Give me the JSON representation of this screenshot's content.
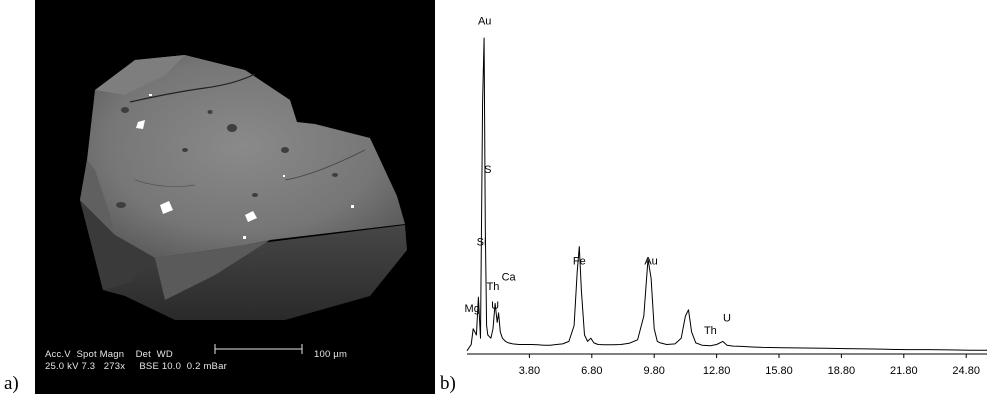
{
  "panels": {
    "a_label": "a)",
    "b_label": "b)"
  },
  "sem": {
    "row1": "Acc.V  Spot Magn    Det  WD",
    "row2": "25.0 kV 7.3   273x     BSE 10.0  0.2 mBar",
    "scale_label": "100 µm"
  },
  "chart_data": {
    "type": "line",
    "x_ticks": [
      "3.80",
      "6.80",
      "9.80",
      "12.80",
      "15.80",
      "18.80",
      "21.80",
      "24.80"
    ],
    "x_tick_values": [
      3.8,
      6.8,
      9.8,
      12.8,
      15.8,
      18.8,
      21.8,
      24.8
    ],
    "xlim": [
      0.8,
      25.8
    ],
    "ylim": [
      0,
      100
    ],
    "series": [
      {
        "x": [
          0.8,
          1.0,
          1.1,
          1.25,
          1.35,
          1.45,
          1.55,
          1.62,
          1.68,
          1.74,
          1.8,
          1.95,
          2.05,
          2.15,
          2.25,
          2.32,
          2.4,
          2.5,
          2.65,
          2.8,
          3.0,
          3.3,
          3.6,
          3.9,
          4.2,
          4.5,
          4.8,
          5.1,
          5.4,
          5.7,
          5.95,
          6.1,
          6.2,
          6.3,
          6.45,
          6.6,
          6.75,
          6.9,
          7.1,
          7.4,
          7.8,
          8.2,
          8.6,
          9.0,
          9.3,
          9.5,
          9.65,
          9.8,
          9.95,
          10.1,
          10.4,
          10.8,
          11.1,
          11.3,
          11.45,
          11.6,
          11.8,
          12.1,
          12.5,
          12.8,
          13.1,
          13.3,
          13.6,
          14.0,
          14.5,
          15.0,
          16.0,
          17.0,
          18.0,
          19.0,
          20.0,
          21.0,
          22.0,
          23.0,
          24.0,
          25.0,
          25.8
        ],
        "y": [
          1,
          3,
          8,
          6,
          18,
          5,
          80,
          100,
          40,
          9,
          6,
          5,
          8,
          16,
          10,
          13,
          7,
          5,
          4,
          3.5,
          3.2,
          3,
          3,
          3,
          2.9,
          2.8,
          2.8,
          3,
          3.2,
          4,
          9,
          26,
          34,
          20,
          6,
          4,
          5,
          3.5,
          3,
          2.9,
          2.9,
          3,
          3.4,
          4.5,
          12,
          30,
          24,
          8,
          4,
          3.5,
          3,
          3.2,
          5,
          12,
          14,
          7,
          3.5,
          2.8,
          2.6,
          3,
          4,
          2.8,
          2.5,
          2.4,
          2.2,
          2.1,
          2,
          1.9,
          1.8,
          1.7,
          1.6,
          1.5,
          1.4,
          1.4,
          1.3,
          1.2,
          1.2
        ]
      }
    ],
    "annotations": [
      {
        "label": "Au",
        "x": 1.65,
        "y": 103
      },
      {
        "label": "S",
        "x": 1.8,
        "y": 56
      },
      {
        "label": "Si",
        "x": 1.5,
        "y": 33
      },
      {
        "label": "Ca",
        "x": 2.8,
        "y": 22
      },
      {
        "label": "Th",
        "x": 2.05,
        "y": 19
      },
      {
        "label": "U",
        "x": 2.15,
        "y": 13
      },
      {
        "label": "Mg",
        "x": 1.05,
        "y": 12
      },
      {
        "label": "Fe",
        "x": 6.2,
        "y": 27
      },
      {
        "label": "Au",
        "x": 9.65,
        "y": 27
      },
      {
        "label": "Th",
        "x": 12.5,
        "y": 5
      },
      {
        "label": "U",
        "x": 13.3,
        "y": 9
      }
    ]
  }
}
